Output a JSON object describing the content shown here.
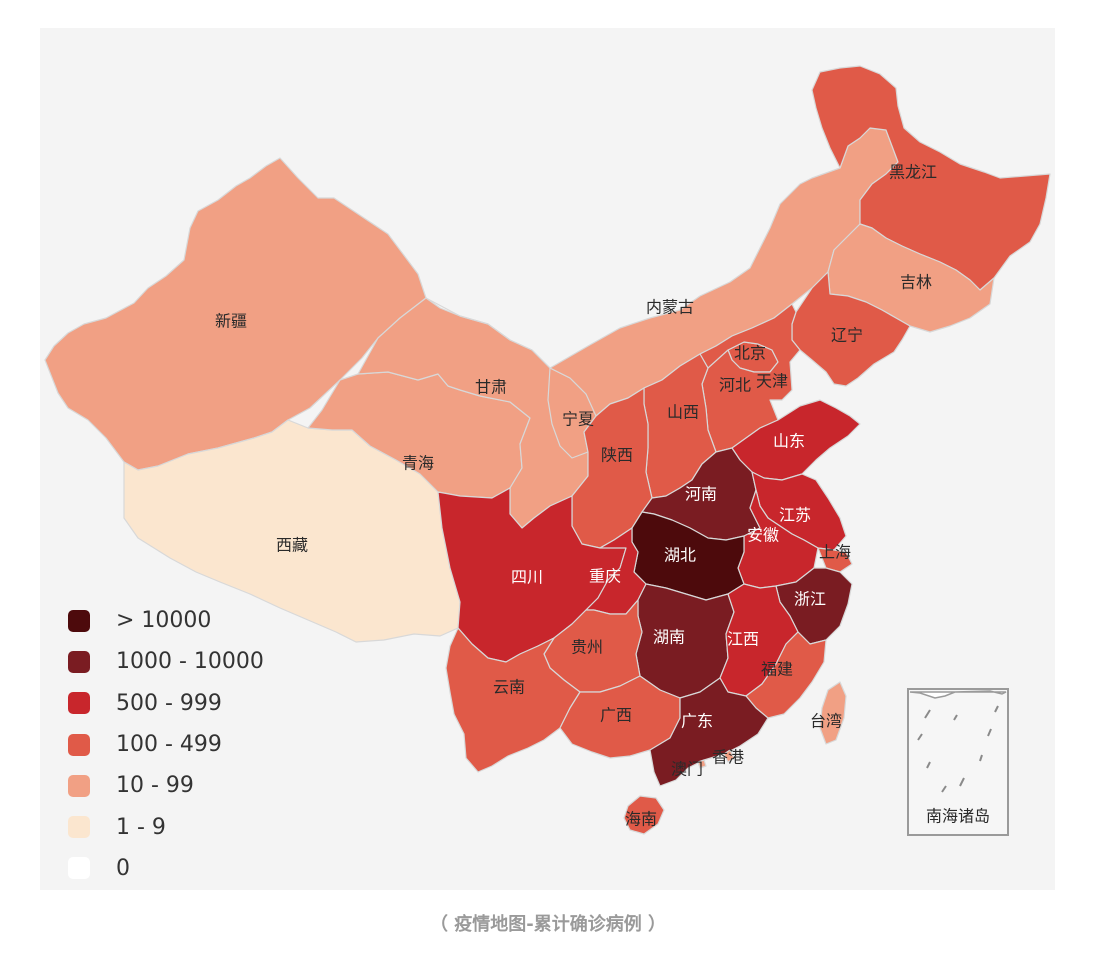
{
  "legend": [
    {
      "label": "> 10000",
      "color": "#4d0a0c"
    },
    {
      "label": "1000 - 10000",
      "color": "#7a1c22"
    },
    {
      "label": "500 - 999",
      "color": "#c8262c"
    },
    {
      "label": "100 - 499",
      "color": "#e05a48"
    },
    {
      "label": "10 - 99",
      "color": "#f1a084"
    },
    {
      "label": "1 - 9",
      "color": "#fbe6cf"
    },
    {
      "label": "0",
      "color": "#ffffff"
    }
  ],
  "provinces": [
    {
      "name": "新疆",
      "tier": 4
    },
    {
      "name": "西藏",
      "tier": 5
    },
    {
      "name": "青海",
      "tier": 4
    },
    {
      "name": "甘肃",
      "tier": 4
    },
    {
      "name": "宁夏",
      "tier": 4
    },
    {
      "name": "内蒙古",
      "tier": 4
    },
    {
      "name": "黑龙江",
      "tier": 3
    },
    {
      "name": "吉林",
      "tier": 4
    },
    {
      "name": "辽宁",
      "tier": 3
    },
    {
      "name": "北京",
      "tier": 3
    },
    {
      "name": "天津",
      "tier": 3
    },
    {
      "name": "河北",
      "tier": 3
    },
    {
      "name": "山西",
      "tier": 3
    },
    {
      "name": "陕西",
      "tier": 3
    },
    {
      "name": "山东",
      "tier": 2
    },
    {
      "name": "河南",
      "tier": 1
    },
    {
      "name": "江苏",
      "tier": 2
    },
    {
      "name": "安徽",
      "tier": 2
    },
    {
      "name": "上海",
      "tier": 3
    },
    {
      "name": "湖北",
      "tier": 0
    },
    {
      "name": "四川",
      "tier": 2
    },
    {
      "name": "重庆",
      "tier": 2
    },
    {
      "name": "浙江",
      "tier": 1
    },
    {
      "name": "湖南",
      "tier": 1
    },
    {
      "name": "江西",
      "tier": 2
    },
    {
      "name": "贵州",
      "tier": 3
    },
    {
      "name": "福建",
      "tier": 3
    },
    {
      "name": "云南",
      "tier": 3
    },
    {
      "name": "广西",
      "tier": 3
    },
    {
      "name": "广东",
      "tier": 1
    },
    {
      "name": "台湾",
      "tier": 4
    },
    {
      "name": "香港",
      "tier": 4
    },
    {
      "name": "澳门",
      "tier": 4
    },
    {
      "name": "海南",
      "tier": 3
    }
  ],
  "inset_label": "南海诸岛",
  "caption": "（ 疫情地图-累计确诊病例 ）"
}
